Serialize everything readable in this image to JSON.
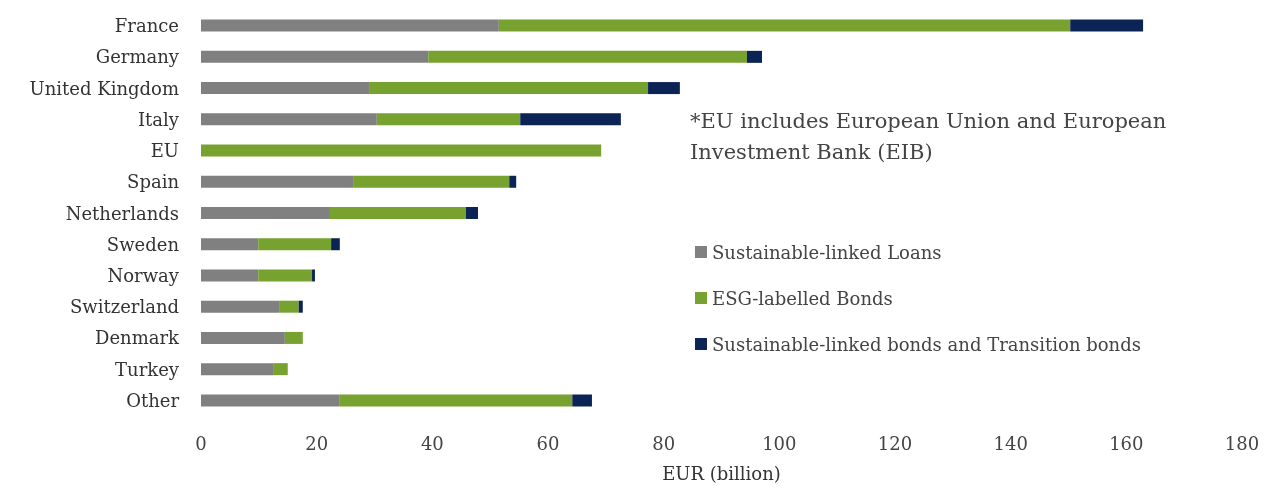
{
  "chart_data": {
    "type": "bar",
    "orientation": "horizontal",
    "stacked": true,
    "xlabel": "EUR (billion)",
    "categories": [
      "France",
      "Germany",
      "United Kingdom",
      "Italy",
      "EU",
      "Spain",
      "Netherlands",
      "Sweden",
      "Norway",
      "Switzerland",
      "Denmark",
      "Turkey",
      "Other"
    ],
    "series": [
      {
        "name": "Sustainable-linked Loans",
        "color": "#808080",
        "values": [
          51.5,
          39.3,
          29.2,
          30.4,
          null,
          26.3,
          22.3,
          9.9,
          9.9,
          13.5,
          14.5,
          12.6,
          24.0
        ]
      },
      {
        "name": "ESG-labelled Bonds",
        "color": "#77a22f",
        "values": [
          98.8,
          55.1,
          48.1,
          24.8,
          69.2,
          27.0,
          23.5,
          12.6,
          9.3,
          3.4,
          3.1,
          2.4,
          40.2
        ]
      },
      {
        "name": "Sustainable-linked bonds and Transition bonds",
        "color": "#0c2356",
        "values": [
          12.6,
          2.6,
          5.5,
          17.4,
          null,
          1.2,
          2.1,
          1.5,
          0.5,
          0.7,
          null,
          null,
          3.4
        ]
      }
    ],
    "xlim": [
      0,
      180
    ],
    "xticks": [
      0,
      20,
      40,
      60,
      80,
      100,
      120,
      140,
      160,
      180
    ],
    "grid": false,
    "legend": "right",
    "annotations": [
      "*EU includes European Union and European Investment Bank (EIB)"
    ]
  }
}
